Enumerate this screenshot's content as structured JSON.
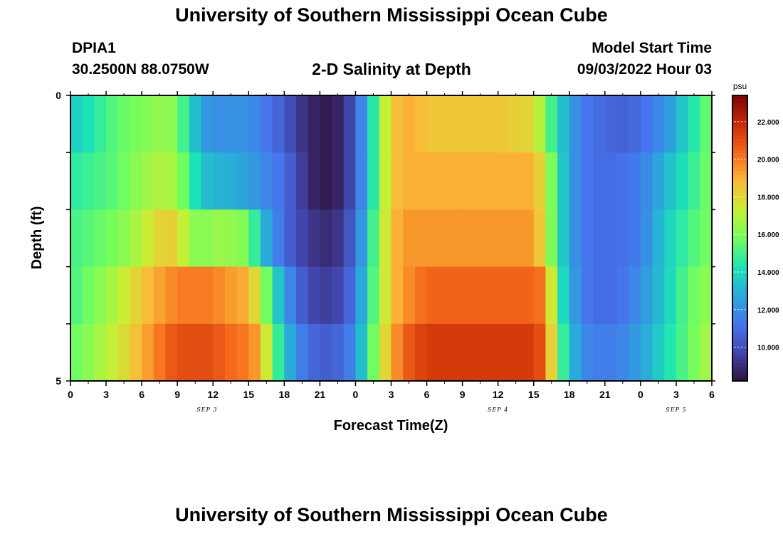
{
  "header": {
    "title": "University of Southern Mississippi Ocean Cube",
    "station_id": "DPIA1",
    "coords": "30.2500N  88.0750W",
    "plot_title": "2-D Salinity at Depth",
    "model_start_label": "Model Start Time",
    "model_start_value": "09/03/2022 Hour 03"
  },
  "footer": {
    "title": "University of Southern Mississippi Ocean Cube"
  },
  "chart_data": {
    "type": "heatmap",
    "title": "2-D Salinity at Depth",
    "xlabel": "Forecast Time(Z)",
    "ylabel": "Depth (ft)",
    "units": "psu",
    "x_range_hours": [
      0,
      54
    ],
    "x_start": "SEP 3 00Z",
    "x_ticks": [
      "0",
      "3",
      "6",
      "9",
      "12",
      "15",
      "18",
      "21",
      "0",
      "3",
      "6",
      "9",
      "12",
      "15",
      "18",
      "21",
      "0",
      "3",
      "6"
    ],
    "x_tick_hours": [
      0,
      3,
      6,
      9,
      12,
      15,
      18,
      21,
      24,
      27,
      30,
      33,
      36,
      39,
      42,
      45,
      48,
      51,
      54
    ],
    "date_labels": [
      {
        "text": "SEP 3",
        "hour": 11.5
      },
      {
        "text": "SEP 4",
        "hour": 36
      },
      {
        "text": "SEP 5",
        "hour": 51
      }
    ],
    "y_ticks": [
      "0",
      "5"
    ],
    "ylim": [
      0,
      5
    ],
    "depth_levels_ft": [
      0,
      1,
      2,
      3,
      4,
      5
    ],
    "colorbar": {
      "label": "psu",
      "min": 8.2,
      "max": 23.4,
      "ticks": [
        "10.000",
        "12.000",
        "14.000",
        "16.000",
        "18.000",
        "20.000",
        "22.000"
      ],
      "tick_values": [
        10,
        12,
        14,
        16,
        18,
        20,
        22
      ]
    },
    "control_points_hours": [
      0,
      2,
      4,
      6,
      8,
      9,
      10,
      11,
      12,
      13,
      15,
      16,
      17,
      18,
      19,
      20,
      21,
      22,
      23,
      24,
      25,
      26,
      27,
      28,
      29,
      30,
      33,
      36,
      39,
      40,
      41,
      42,
      43,
      44,
      45,
      46,
      48,
      50,
      52,
      54
    ],
    "salinity_psu_by_layer": [
      [
        13.5,
        14.5,
        15.5,
        16.0,
        16.5,
        16.0,
        14.0,
        12.5,
        12.0,
        12.0,
        12.0,
        11.5,
        11.0,
        10.5,
        9.5,
        9.0,
        8.5,
        8.5,
        9.0,
        10.5,
        13.0,
        16.0,
        18.5,
        19.0,
        19.0,
        18.5,
        18.5,
        18.5,
        18.0,
        16.0,
        14.0,
        12.5,
        11.5,
        11.0,
        11.0,
        10.5,
        11.0,
        12.0,
        14.0,
        16.0
      ],
      [
        14.5,
        15.0,
        15.5,
        16.5,
        17.0,
        16.5,
        15.0,
        13.5,
        13.0,
        13.0,
        12.5,
        12.0,
        11.5,
        11.0,
        10.0,
        9.0,
        8.5,
        8.5,
        9.0,
        10.5,
        13.0,
        16.0,
        18.5,
        19.0,
        19.0,
        19.0,
        19.0,
        19.0,
        19.0,
        17.5,
        14.5,
        12.5,
        11.5,
        11.0,
        11.0,
        11.0,
        11.5,
        13.0,
        14.5,
        16.0
      ],
      [
        15.0,
        15.5,
        16.0,
        17.0,
        18.5,
        18.0,
        16.5,
        16.0,
        16.5,
        16.5,
        16.0,
        13.5,
        12.0,
        11.0,
        10.0,
        9.5,
        9.0,
        9.0,
        9.5,
        11.0,
        13.5,
        16.5,
        18.5,
        19.5,
        19.5,
        19.5,
        19.5,
        19.5,
        19.5,
        17.5,
        14.5,
        12.5,
        11.5,
        11.0,
        11.0,
        11.0,
        11.5,
        13.5,
        15.0,
        16.0
      ],
      [
        15.0,
        16.0,
        17.0,
        18.5,
        19.5,
        20.0,
        20.0,
        20.0,
        20.0,
        19.5,
        19.0,
        17.0,
        14.5,
        12.5,
        11.0,
        10.0,
        9.5,
        9.5,
        10.0,
        11.5,
        14.0,
        16.5,
        18.5,
        19.5,
        20.0,
        20.5,
        20.5,
        20.5,
        20.5,
        20.0,
        15.0,
        13.0,
        11.5,
        11.0,
        11.0,
        11.0,
        12.0,
        13.5,
        15.5,
        16.5
      ],
      [
        15.5,
        16.5,
        17.5,
        19.0,
        20.5,
        21.0,
        21.0,
        21.0,
        21.0,
        20.5,
        20.0,
        19.0,
        16.0,
        13.5,
        12.0,
        11.0,
        10.5,
        10.5,
        11.0,
        12.0,
        14.5,
        17.0,
        19.0,
        20.5,
        21.0,
        21.5,
        21.5,
        21.5,
        21.5,
        20.5,
        16.0,
        13.5,
        12.0,
        11.5,
        11.5,
        11.5,
        12.5,
        14.0,
        15.5,
        17.0
      ]
    ]
  }
}
